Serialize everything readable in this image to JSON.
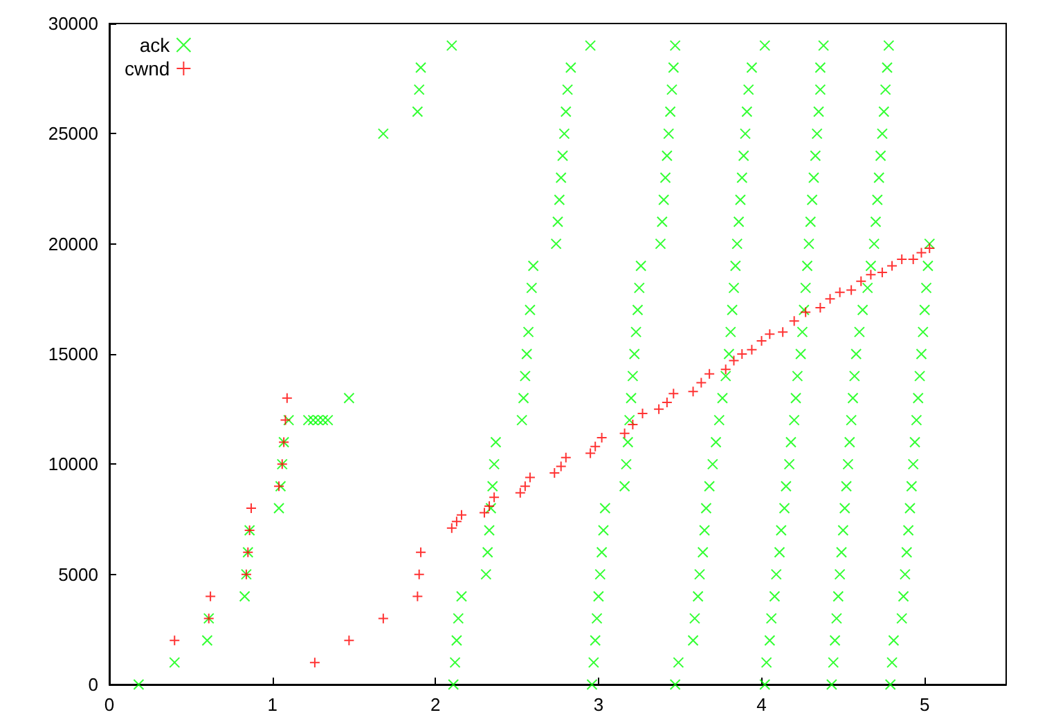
{
  "chart_data": {
    "type": "scatter",
    "xlim": [
      0,
      5.5
    ],
    "ylim": [
      0,
      30000
    ],
    "xticks": [
      0,
      1,
      2,
      3,
      4,
      5
    ],
    "yticks": [
      0,
      5000,
      10000,
      15000,
      20000,
      25000,
      30000
    ],
    "grid": false,
    "legend": "top left",
    "series": [
      {
        "name": "ack",
        "color": "#00ff00",
        "marker": "cross",
        "x": [
          0.18,
          0.4,
          0.6,
          0.61,
          0.83,
          0.84,
          0.85,
          0.86,
          1.04,
          1.05,
          1.06,
          1.07,
          1.1,
          1.22,
          1.25,
          1.28,
          1.31,
          1.34,
          1.47,
          1.68,
          1.89,
          1.9,
          1.91,
          2.1,
          2.11,
          2.12,
          2.13,
          2.14,
          2.16,
          2.31,
          2.32,
          2.33,
          2.34,
          2.35,
          2.36,
          2.37,
          2.53,
          2.54,
          2.55,
          2.56,
          2.57,
          2.58,
          2.59,
          2.6,
          2.74,
          2.75,
          2.76,
          2.77,
          2.78,
          2.79,
          2.8,
          2.81,
          2.83,
          2.95,
          2.96,
          2.97,
          2.98,
          2.99,
          3.0,
          3.01,
          3.02,
          3.03,
          3.04,
          3.16,
          3.17,
          3.18,
          3.19,
          3.2,
          3.21,
          3.22,
          3.23,
          3.24,
          3.25,
          3.26,
          3.38,
          3.39,
          3.4,
          3.41,
          3.42,
          3.43,
          3.44,
          3.45,
          3.46,
          3.47,
          3.47,
          3.49,
          3.58,
          3.59,
          3.61,
          3.62,
          3.64,
          3.65,
          3.66,
          3.68,
          3.7,
          3.72,
          3.74,
          3.76,
          3.78,
          3.8,
          3.81,
          3.82,
          3.83,
          3.84,
          3.85,
          3.86,
          3.87,
          3.88,
          3.89,
          3.9,
          3.91,
          3.92,
          3.94,
          4.02,
          4.02,
          4.03,
          4.05,
          4.06,
          4.08,
          4.09,
          4.11,
          4.12,
          4.14,
          4.15,
          4.17,
          4.18,
          4.2,
          4.21,
          4.22,
          4.24,
          4.25,
          4.26,
          4.27,
          4.28,
          4.29,
          4.3,
          4.31,
          4.32,
          4.33,
          4.34,
          4.35,
          4.36,
          4.36,
          4.38,
          4.43,
          4.44,
          4.45,
          4.46,
          4.47,
          4.48,
          4.49,
          4.5,
          4.51,
          4.52,
          4.53,
          4.54,
          4.55,
          4.56,
          4.57,
          4.58,
          4.6,
          4.62,
          4.65,
          4.67,
          4.69,
          4.7,
          4.71,
          4.72,
          4.73,
          4.74,
          4.75,
          4.76,
          4.77,
          4.78,
          4.79,
          4.8,
          4.81,
          4.86,
          4.87,
          4.88,
          4.89,
          4.9,
          4.91,
          4.92,
          4.93,
          4.94,
          4.95,
          4.96,
          4.97,
          4.98,
          4.99,
          5.0,
          5.01,
          5.02,
          5.03
        ],
        "values": [
          0,
          1000,
          2000,
          3000,
          4000,
          5000,
          6000,
          7000,
          8000,
          9000,
          10000,
          11000,
          12000,
          12000,
          12000,
          12000,
          12000,
          12000,
          13000,
          25000,
          26000,
          27000,
          28000,
          29000,
          0,
          1000,
          2000,
          3000,
          4000,
          5000,
          6000,
          7000,
          8000,
          9000,
          10000,
          11000,
          12000,
          13000,
          14000,
          15000,
          16000,
          17000,
          18000,
          19000,
          20000,
          21000,
          22000,
          23000,
          24000,
          25000,
          26000,
          27000,
          28000,
          29000,
          0,
          1000,
          2000,
          3000,
          4000,
          5000,
          6000,
          7000,
          8000,
          9000,
          10000,
          11000,
          12000,
          13000,
          14000,
          15000,
          16000,
          17000,
          18000,
          19000,
          20000,
          21000,
          22000,
          23000,
          24000,
          25000,
          26000,
          27000,
          28000,
          29000,
          0,
          1000,
          2000,
          3000,
          4000,
          5000,
          6000,
          7000,
          8000,
          9000,
          10000,
          11000,
          12000,
          13000,
          14000,
          15000,
          16000,
          17000,
          18000,
          19000,
          20000,
          21000,
          22000,
          23000,
          24000,
          25000,
          26000,
          27000,
          28000,
          29000,
          0,
          1000,
          2000,
          3000,
          4000,
          5000,
          6000,
          7000,
          8000,
          9000,
          10000,
          11000,
          12000,
          13000,
          14000,
          15000,
          16000,
          17000,
          18000,
          19000,
          20000,
          21000,
          22000,
          23000,
          24000,
          25000,
          26000,
          27000,
          28000,
          29000,
          0,
          1000,
          2000,
          3000,
          4000,
          5000,
          6000,
          7000,
          8000,
          9000,
          10000,
          11000,
          12000,
          13000,
          14000,
          15000,
          16000,
          17000,
          18000,
          19000,
          20000,
          21000,
          22000,
          23000,
          24000,
          25000,
          26000,
          27000,
          28000,
          29000,
          0,
          1000,
          2000,
          3000,
          4000,
          5000,
          6000,
          7000,
          8000,
          9000,
          10000,
          11000,
          12000,
          13000,
          14000,
          15000,
          16000,
          17000,
          18000,
          19000,
          20000
        ]
      },
      {
        "name": "cwnd",
        "color": "#ff0000",
        "marker": "plus",
        "x": [
          0.4,
          0.61,
          0.62,
          0.84,
          0.85,
          0.86,
          0.87,
          1.04,
          1.06,
          1.07,
          1.08,
          1.09,
          1.26,
          1.47,
          1.68,
          1.89,
          1.9,
          1.91,
          2.1,
          2.13,
          2.16,
          2.3,
          2.33,
          2.36,
          2.52,
          2.55,
          2.58,
          2.73,
          2.77,
          2.8,
          2.95,
          2.98,
          3.02,
          3.16,
          3.21,
          3.27,
          3.37,
          3.42,
          3.46,
          3.58,
          3.63,
          3.68,
          3.78,
          3.83,
          3.88,
          3.94,
          4.0,
          4.05,
          4.13,
          4.2,
          4.27,
          4.36,
          4.42,
          4.48,
          4.55,
          4.61,
          4.67,
          4.74,
          4.8,
          4.86,
          4.93,
          4.98,
          5.03
        ],
        "values": [
          2000,
          3000,
          4000,
          5000,
          6000,
          7000,
          8000,
          9000,
          10000,
          11000,
          12000,
          13000,
          1000,
          2000,
          3000,
          4000,
          5000,
          6000,
          7100,
          7400,
          7700,
          7800,
          8100,
          8500,
          8700,
          9000,
          9400,
          9600,
          9900,
          10300,
          10500,
          10800,
          11200,
          11400,
          11800,
          12300,
          12500,
          12800,
          13200,
          13300,
          13700,
          14100,
          14300,
          14700,
          15000,
          15200,
          15600,
          15900,
          16000,
          16500,
          16900,
          17100,
          17500,
          17800,
          17900,
          18300,
          18600,
          18700,
          19000,
          19300,
          19300,
          19600,
          19800
        ]
      }
    ]
  }
}
